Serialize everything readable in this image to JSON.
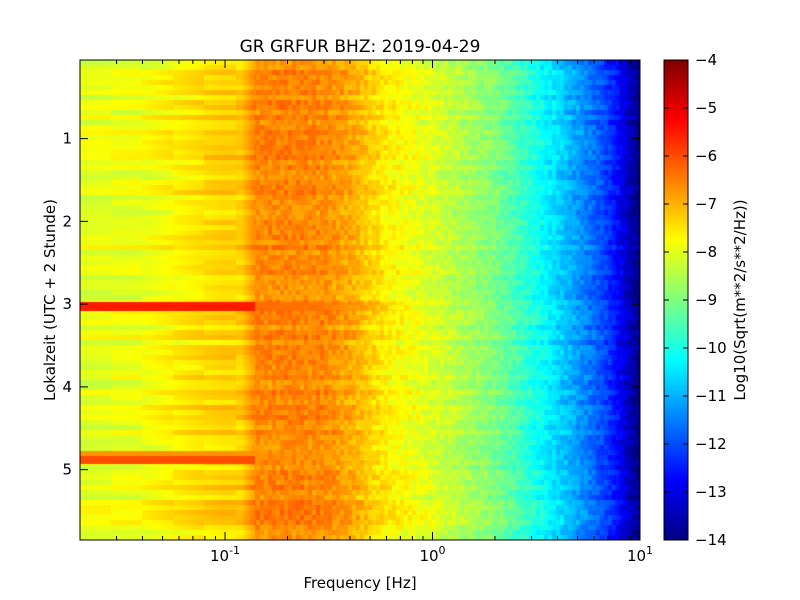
{
  "chart_data": {
    "type": "heatmap",
    "title": "GR GRFUR BHZ: 2019-04-29",
    "xlabel": "Frequency [Hz]",
    "ylabel": "Lokalzeit (UTC + 2 Stunde)",
    "colorbar_label": "Log10(Sqrt(m**2/s**2/Hz))",
    "x_scale": "log",
    "xlim": [
      0.02,
      10
    ],
    "ylim": [
      5.85,
      0.05
    ],
    "y_inverted": true,
    "colormap": "jet",
    "clim": [
      -14,
      -4
    ],
    "x_ticks": [
      {
        "value": 0.1,
        "base": "10",
        "exp": "-1"
      },
      {
        "value": 1,
        "base": "10",
        "exp": "0"
      },
      {
        "value": 10,
        "base": "10",
        "exp": "1"
      }
    ],
    "y_ticks": [
      {
        "value": 1,
        "label": "1"
      },
      {
        "value": 2,
        "label": "2"
      },
      {
        "value": 3,
        "label": "3"
      },
      {
        "value": 4,
        "label": "4"
      },
      {
        "value": 5,
        "label": "5"
      }
    ],
    "colorbar_ticks": [
      {
        "value": -4,
        "label": "−4"
      },
      {
        "value": -5,
        "label": "−5"
      },
      {
        "value": -6,
        "label": "−6"
      },
      {
        "value": -7,
        "label": "−7"
      },
      {
        "value": -8,
        "label": "−8"
      },
      {
        "value": -9,
        "label": "−9"
      },
      {
        "value": -10,
        "label": "−10"
      },
      {
        "value": -11,
        "label": "−11"
      },
      {
        "value": -12,
        "label": "−12"
      },
      {
        "value": -13,
        "label": "−13"
      },
      {
        "value": -14,
        "label": "−14"
      }
    ],
    "frequency_profile": {
      "freq_hz": [
        0.02,
        0.04,
        0.06,
        0.08,
        0.1,
        0.12,
        0.14,
        0.2,
        0.3,
        0.4,
        0.5,
        0.6,
        0.8,
        1.0,
        1.5,
        2.0,
        3.0,
        4.0,
        5.0,
        6.0,
        7.0,
        8.0,
        9.0,
        10.0
      ],
      "level_log10": [
        -8.0,
        -7.9,
        -7.6,
        -7.4,
        -7.3,
        -7.3,
        -6.6,
        -6.55,
        -6.6,
        -6.9,
        -7.3,
        -7.6,
        -7.9,
        -8.1,
        -8.6,
        -9.0,
        -9.9,
        -10.6,
        -11.2,
        -11.7,
        -12.2,
        -12.8,
        -13.5,
        -14.0
      ]
    },
    "events": [
      {
        "time_h": 3.03,
        "freq_max_hz": 0.14,
        "level_log10": -5.5
      },
      {
        "time_h": 3.03,
        "freq_max_hz": 0.9,
        "level_log10": -6.3
      },
      {
        "time_h": 4.88,
        "freq_max_hz": 0.14,
        "level_log10": -6.0
      },
      {
        "time_h": 4.82,
        "freq_max_hz": 0.8,
        "level_log10": -6.7
      }
    ]
  }
}
